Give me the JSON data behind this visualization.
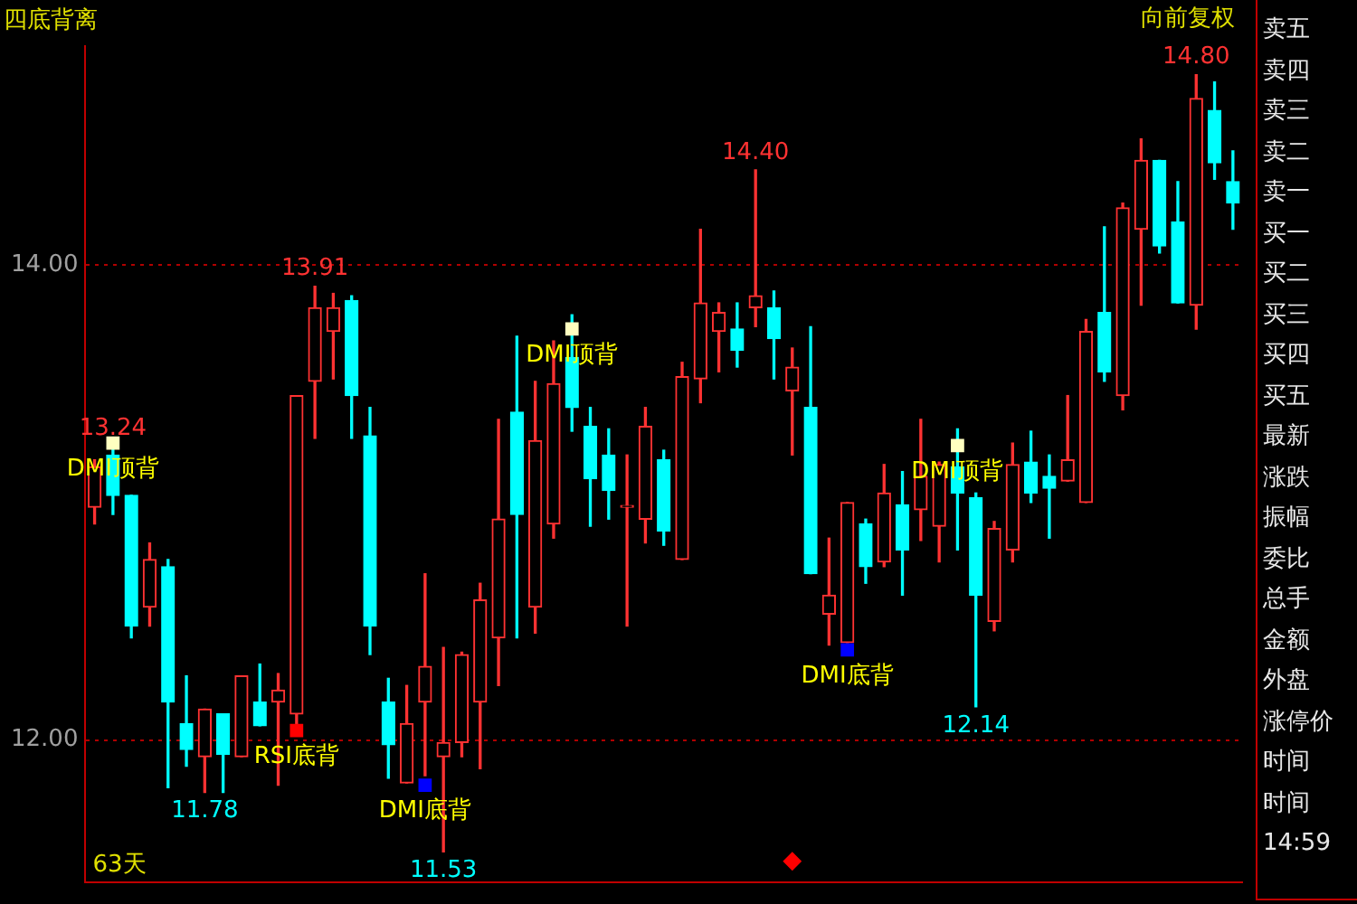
{
  "chart_data": {
    "type": "candlestick",
    "title": "四底背离",
    "categories": [
      null,
      null,
      null,
      null,
      null,
      null,
      null,
      null,
      null,
      null,
      null,
      null,
      null,
      null,
      null,
      null,
      null,
      null,
      null,
      null,
      null,
      null,
      null,
      null,
      null,
      null,
      null,
      null,
      null,
      null,
      null,
      null,
      null,
      null,
      null,
      null,
      null,
      null,
      null,
      null,
      null,
      null,
      null,
      null,
      null,
      null,
      null,
      null,
      null,
      null,
      null,
      null,
      null,
      null,
      null,
      null,
      null,
      null,
      null,
      null,
      null,
      null,
      null
    ],
    "ohlc": [
      [
        12.98,
        13.18,
        12.91,
        13.15
      ],
      [
        13.2,
        13.24,
        12.95,
        13.03
      ],
      [
        13.03,
        13.03,
        12.43,
        12.48
      ],
      [
        12.56,
        12.83,
        12.48,
        12.76
      ],
      [
        12.73,
        12.76,
        11.8,
        12.16
      ],
      [
        12.07,
        12.27,
        11.89,
        11.96
      ],
      [
        11.93,
        12.13,
        11.78,
        12.13
      ],
      [
        12.11,
        12.11,
        11.78,
        11.94
      ],
      [
        11.93,
        12.27,
        11.93,
        12.27
      ],
      [
        12.16,
        12.32,
        12.06,
        12.06
      ],
      [
        12.16,
        12.28,
        11.81,
        12.21
      ],
      [
        12.11,
        13.45,
        12.06,
        13.45
      ],
      [
        13.51,
        13.91,
        13.27,
        13.82
      ],
      [
        13.72,
        13.88,
        13.52,
        13.82
      ],
      [
        13.85,
        13.87,
        13.27,
        13.45
      ],
      [
        13.28,
        13.4,
        12.36,
        12.48
      ],
      [
        12.16,
        12.26,
        11.84,
        11.98
      ],
      [
        11.82,
        12.23,
        11.82,
        12.07
      ],
      [
        12.16,
        12.7,
        11.85,
        12.31
      ],
      [
        11.93,
        12.39,
        11.53,
        11.99
      ],
      [
        11.99,
        12.37,
        11.93,
        12.36
      ],
      [
        12.16,
        12.66,
        11.88,
        12.59
      ],
      [
        12.43,
        13.35,
        12.23,
        12.93
      ],
      [
        13.38,
        13.7,
        12.43,
        12.95
      ],
      [
        12.56,
        13.51,
        12.45,
        13.26
      ],
      [
        12.91,
        13.68,
        12.85,
        13.5
      ],
      [
        13.61,
        13.79,
        13.3,
        13.4
      ],
      [
        13.32,
        13.4,
        12.9,
        13.1
      ],
      [
        13.2,
        13.31,
        12.93,
        13.05
      ],
      [
        12.98,
        13.2,
        12.48,
        12.98
      ],
      [
        12.93,
        13.4,
        12.83,
        13.32
      ],
      [
        13.18,
        13.22,
        12.82,
        12.88
      ],
      [
        12.76,
        13.59,
        12.76,
        13.53
      ],
      [
        13.52,
        14.15,
        13.42,
        13.84
      ],
      [
        13.72,
        13.84,
        13.55,
        13.8
      ],
      [
        13.73,
        13.84,
        13.57,
        13.64
      ],
      [
        13.82,
        14.4,
        13.74,
        13.87
      ],
      [
        13.82,
        13.89,
        13.52,
        13.69
      ],
      [
        13.47,
        13.65,
        13.2,
        13.57
      ],
      [
        13.4,
        13.74,
        12.7,
        12.7
      ],
      [
        12.53,
        12.85,
        12.4,
        12.61
      ],
      [
        12.41,
        13.0,
        12.41,
        13.0
      ],
      [
        12.91,
        12.93,
        12.66,
        12.73
      ],
      [
        12.75,
        13.16,
        12.73,
        13.04
      ],
      [
        12.99,
        13.13,
        12.61,
        12.8
      ],
      [
        12.97,
        13.35,
        12.84,
        13.11
      ],
      [
        12.9,
        13.17,
        12.75,
        13.16
      ],
      [
        13.15,
        13.31,
        12.8,
        13.04
      ],
      [
        13.02,
        13.04,
        12.14,
        12.61
      ],
      [
        12.5,
        12.92,
        12.46,
        12.89
      ],
      [
        12.8,
        13.25,
        12.75,
        13.16
      ],
      [
        13.17,
        13.3,
        13.0,
        13.04
      ],
      [
        13.11,
        13.2,
        12.85,
        13.06
      ],
      [
        13.09,
        13.45,
        13.09,
        13.18
      ],
      [
        13.0,
        13.77,
        13.0,
        13.72
      ],
      [
        13.8,
        14.16,
        13.51,
        13.55
      ],
      [
        13.45,
        14.26,
        13.39,
        14.24
      ],
      [
        14.15,
        14.53,
        13.83,
        14.44
      ],
      [
        14.44,
        14.44,
        14.05,
        14.08
      ],
      [
        14.18,
        14.35,
        13.84,
        13.84
      ],
      [
        13.83,
        14.8,
        13.73,
        14.7
      ],
      [
        14.65,
        14.77,
        14.36,
        14.43
      ],
      [
        14.35,
        14.48,
        14.15,
        14.26
      ]
    ],
    "series": [
      {
        "type": "scatter",
        "marker": "square",
        "values": [
          null,
          13.25,
          null,
          null,
          null,
          null,
          null,
          null,
          null,
          null,
          null,
          12.04,
          null,
          null,
          null,
          null,
          null,
          null,
          11.81,
          null,
          null,
          null,
          null,
          null,
          null,
          null,
          13.73,
          null,
          null,
          null,
          null,
          null,
          null,
          null,
          null,
          null,
          null,
          null,
          null,
          null,
          null,
          12.38,
          null,
          null,
          null,
          null,
          null,
          13.24,
          null,
          null,
          null,
          null,
          null,
          null,
          null,
          null,
          null,
          null,
          null,
          null,
          null,
          null,
          null
        ],
        "colors": [
          null,
          "#ffffc0",
          null,
          null,
          null,
          null,
          null,
          null,
          null,
          null,
          null,
          "#ff0000",
          null,
          null,
          null,
          null,
          null,
          null,
          "#0000ff",
          null,
          null,
          null,
          null,
          null,
          null,
          null,
          "#ffffc0",
          null,
          null,
          null,
          null,
          null,
          null,
          null,
          null,
          null,
          null,
          null,
          null,
          null,
          null,
          "#0000ff",
          null,
          null,
          null,
          null,
          null,
          "#ffffc0",
          null,
          null,
          null,
          null,
          null,
          null,
          null,
          null,
          null,
          null,
          null,
          null,
          null,
          null,
          null
        ],
        "value_labels": [
          null,
          "DMI顶背",
          null,
          null,
          null,
          null,
          null,
          null,
          null,
          null,
          null,
          "RSI底背",
          null,
          null,
          null,
          null,
          null,
          null,
          "DMI底背",
          null,
          null,
          null,
          null,
          null,
          null,
          null,
          "DMI顶背",
          null,
          null,
          null,
          null,
          null,
          null,
          null,
          null,
          null,
          null,
          null,
          null,
          null,
          null,
          "DMI底背",
          null,
          null,
          null,
          null,
          null,
          "DMI顶背",
          null,
          null,
          null,
          null,
          null,
          null,
          null,
          null,
          null,
          null,
          null,
          null,
          null,
          null,
          null
        ]
      },
      {
        "type": "scatter",
        "marker": "diamond",
        "color": "#ff0000",
        "values": [
          null,
          null,
          null,
          null,
          null,
          null,
          null,
          null,
          null,
          null,
          null,
          null,
          null,
          null,
          null,
          null,
          null,
          null,
          null,
          null,
          null,
          null,
          null,
          null,
          null,
          null,
          null,
          null,
          null,
          null,
          null,
          null,
          null,
          null,
          null,
          null,
          null,
          null,
          11.49,
          null,
          null,
          null,
          null,
          null,
          null,
          null,
          null,
          null,
          null,
          null,
          null,
          null,
          null,
          null,
          null,
          null,
          null,
          null,
          null,
          null,
          null,
          null,
          null
        ]
      }
    ],
    "ylim": [
      11.4,
      14.92
    ],
    "yticks": [
      {
        "value": 14,
        "label": "14.00"
      },
      {
        "value": 12,
        "label": "12.00"
      }
    ],
    "grid": "y",
    "legend": false,
    "tick_labels": "y",
    "annotations": [
      {
        "text": "13.24",
        "y": 13.24
      },
      {
        "text": "11.78",
        "y": 11.78
      },
      {
        "text": "13.91",
        "y": 13.91
      },
      {
        "text": "11.53",
        "y": 11.53
      },
      {
        "text": "14.40",
        "y": 14.4
      },
      {
        "text": "12.14",
        "y": 12.14
      },
      {
        "text": "14.80",
        "y": 14.8
      },
      "向前复权",
      "63天",
      "卖五",
      "卖四",
      "卖三",
      "卖二",
      "卖一",
      "买一",
      "买二",
      "买三",
      "买四",
      "买五",
      "最新",
      "涨跌",
      "振幅",
      "委比",
      "总手",
      "金额",
      "外盘",
      "涨停价",
      "时间",
      "时间",
      "14:59"
    ]
  }
}
